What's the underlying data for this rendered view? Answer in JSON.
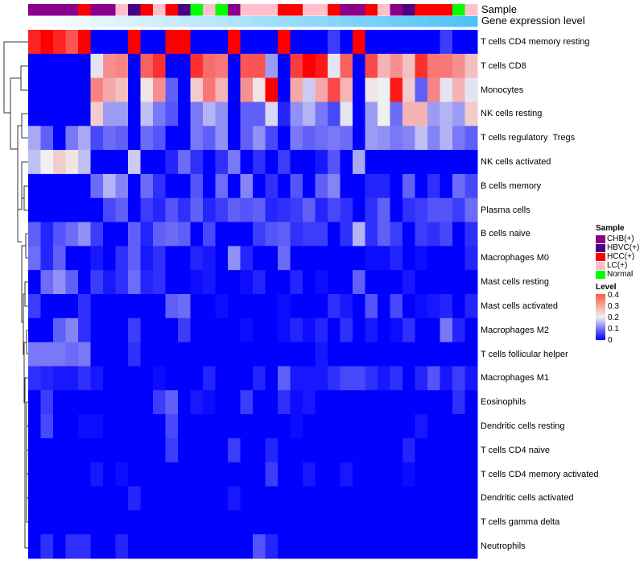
{
  "chart_data": {
    "type": "heatmap",
    "title": "",
    "annotation_labels": {
      "sample": "Sample",
      "gene_level": "Gene expression level"
    },
    "sample_groups": [
      "CHB(+)",
      "CHB(+)",
      "CHB(+)",
      "CHB(+)",
      "HCC(+)",
      "CHB(+)",
      "CHB(+)",
      "LC(+)",
      "HBVC(+)",
      "HCC(+)",
      "LC(+)",
      "HCC(+)",
      "HBVC(+)",
      "Normal",
      "LC(+)",
      "Normal",
      "CHB(+)",
      "LC(+)",
      "LC(+)",
      "LC(+)",
      "HCC(+)",
      "HCC(+)",
      "LC(+)",
      "LC(+)",
      "HCC(+)",
      "CHB(+)",
      "CHB(+)",
      "HCC(+)",
      "LC(+)",
      "CHB(+)",
      "HBVC(+)",
      "HCC(+)",
      "HCC(+)",
      "HCC(+)",
      "Normal",
      "LC(+)"
    ],
    "rows": [
      "T cells CD4 memory resting",
      "T cells CD8",
      "Monocytes",
      "NK cells resting",
      "T cells regulatory  Tregs",
      "NK cells activated",
      "B cells memory",
      "Plasma cells",
      "B cells naive",
      "Macrophages M0",
      "Mast cells resting",
      "Mast cells activated",
      "Macrophages M2",
      "T cells follicular helper",
      "Macrophages M1",
      "Eosinophils",
      "Dendritic cells resting",
      "T cells CD4 naive",
      "T cells CD4 memory activated",
      "Dendritic cells activated",
      "T cells gamma delta",
      "Neutrophils"
    ],
    "values": [
      [
        0.37,
        0.45,
        0.37,
        0.33,
        0.45,
        0,
        0,
        0,
        0.45,
        0,
        0,
        0.45,
        0.45,
        0,
        0,
        0,
        0.45,
        0,
        0,
        0,
        0.45,
        0,
        0,
        0,
        0.05,
        0,
        0.45,
        0,
        0,
        0,
        0,
        0,
        0,
        0.05,
        0,
        0
      ],
      [
        0,
        0,
        0,
        0,
        0,
        0.19,
        0.28,
        0.29,
        0,
        0.32,
        0.36,
        0,
        0,
        0.36,
        0.31,
        0.3,
        0,
        0.33,
        0.33,
        0.13,
        0,
        0.35,
        0.4,
        0.38,
        0.19,
        0.32,
        0,
        0.34,
        0.25,
        0.28,
        0.24,
        0.36,
        0.3,
        0.3,
        0.28,
        0.24
      ],
      [
        0,
        0,
        0,
        0,
        0,
        0.29,
        0.26,
        0.24,
        0,
        0.21,
        0.28,
        0.08,
        0,
        0.23,
        0.3,
        0.25,
        0,
        0.28,
        0.21,
        0.45,
        0,
        0.26,
        0.17,
        0.26,
        0.34,
        0.25,
        0,
        0.21,
        0.2,
        0.38,
        0.23,
        0.08,
        0.29,
        0.19,
        0.25,
        0.19
      ],
      [
        0,
        0,
        0,
        0,
        0,
        0.23,
        0.13,
        0.13,
        0,
        0.16,
        0.1,
        0.07,
        0,
        0.1,
        0.15,
        0.12,
        0,
        0.08,
        0.08,
        0.18,
        0.03,
        0.12,
        0.15,
        0.1,
        0.06,
        0.19,
        0,
        0.13,
        0.2,
        0.09,
        0.25,
        0.25,
        0.13,
        0.15,
        0.13,
        0.23
      ],
      [
        0.14,
        0.08,
        0,
        0.1,
        0.14,
        0.06,
        0.09,
        0.08,
        0,
        0.09,
        0.07,
        0,
        0,
        0.1,
        0.08,
        0.12,
        0,
        0.08,
        0.12,
        0.06,
        0,
        0.1,
        0.08,
        0.09,
        0.1,
        0.09,
        0,
        0.13,
        0.12,
        0.1,
        0.11,
        0.16,
        0.11,
        0.15,
        0.1,
        0.08
      ],
      [
        0.16,
        0.2,
        0.23,
        0.21,
        0.16,
        0,
        0,
        0,
        0.17,
        0,
        0,
        0.03,
        0.09,
        0.04,
        0,
        0.04,
        0.1,
        0,
        0.04,
        0,
        0.05,
        0,
        0,
        0.02,
        0.07,
        0,
        0.14,
        0,
        0,
        0,
        0,
        0,
        0,
        0,
        0,
        0
      ],
      [
        0,
        0,
        0,
        0,
        0,
        0.09,
        0.15,
        0.11,
        0,
        0.09,
        0.04,
        0,
        0,
        0.07,
        0,
        0.09,
        0,
        0.11,
        0,
        0.04,
        0,
        0.07,
        0,
        0.08,
        0.11,
        0,
        0,
        0.03,
        0.03,
        0,
        0.08,
        0,
        0.04,
        0,
        0.09,
        0.06
      ],
      [
        0,
        0,
        0,
        0,
        0,
        0,
        0.06,
        0.08,
        0,
        0.05,
        0.03,
        0.07,
        0.04,
        0.08,
        0.03,
        0.05,
        0.08,
        0.07,
        0.08,
        0.03,
        0.04,
        0.05,
        0.08,
        0.03,
        0.06,
        0.04,
        0,
        0.04,
        0.08,
        0,
        0.04,
        0.05,
        0.07,
        0.07,
        0.05,
        0.09
      ],
      [
        0.08,
        0.03,
        0.07,
        0.09,
        0.12,
        0.05,
        0,
        0,
        0.08,
        0.03,
        0.08,
        0.09,
        0.08,
        0,
        0.06,
        0,
        0,
        0,
        0.05,
        0.07,
        0.08,
        0.04,
        0.05,
        0.05,
        0,
        0.04,
        0.15,
        0.04,
        0.08,
        0.05,
        0,
        0.05,
        0.04,
        0.06,
        0,
        0.04
      ],
      [
        0.09,
        0.03,
        0.08,
        0,
        0,
        0.02,
        0,
        0.04,
        0.08,
        0.02,
        0.04,
        0,
        0,
        0.03,
        0.02,
        0,
        0.12,
        0.03,
        0,
        0,
        0.09,
        0,
        0,
        0,
        0,
        0,
        0,
        0.01,
        0.01,
        0.03,
        0,
        0.01,
        0,
        0,
        0,
        0.03
      ],
      [
        0,
        0.09,
        0.12,
        0.08,
        0,
        0.05,
        0.02,
        0.04,
        0.09,
        0.03,
        0.04,
        0,
        0,
        0.01,
        0.02,
        0,
        0,
        0.01,
        0.03,
        0,
        0,
        0.03,
        0,
        0.01,
        0,
        0,
        0.08,
        0,
        0,
        0,
        0.02,
        0,
        0,
        0,
        0,
        0
      ],
      [
        0.05,
        0,
        0,
        0,
        0.04,
        0,
        0,
        0,
        0,
        0,
        0,
        0.08,
        0.09,
        0,
        0,
        0.01,
        0,
        0,
        0,
        0,
        0.01,
        0,
        0,
        0,
        0.04,
        0.02,
        0,
        0.07,
        0,
        0.06,
        0,
        0.01,
        0.02,
        0.03,
        0,
        0.03
      ],
      [
        0,
        0,
        0.08,
        0.11,
        0.04,
        0,
        0,
        0,
        0.05,
        0,
        0,
        0,
        0.05,
        0,
        0,
        0,
        0,
        0.01,
        0,
        0,
        0.01,
        0.03,
        0.01,
        0.03,
        0,
        0.04,
        0,
        0.02,
        0,
        0.01,
        0.04,
        0,
        0,
        0.1,
        0.03,
        0
      ],
      [
        0.1,
        0.1,
        0.1,
        0.09,
        0.1,
        0,
        0,
        0,
        0.04,
        0,
        0,
        0,
        0,
        0,
        0,
        0,
        0,
        0,
        0,
        0,
        0,
        0,
        0,
        0.02,
        0,
        0,
        0,
        0,
        0,
        0,
        0,
        0,
        0,
        0,
        0,
        0
      ],
      [
        0.04,
        0.03,
        0.02,
        0.02,
        0.04,
        0.02,
        0,
        0,
        0,
        0,
        0.01,
        0,
        0,
        0,
        0.03,
        0,
        0,
        0,
        0.03,
        0,
        0.08,
        0.02,
        0.02,
        0.02,
        0.04,
        0.06,
        0.06,
        0.04,
        0.02,
        0.04,
        0,
        0.03,
        0.07,
        0.02,
        0.05,
        0.02
      ],
      [
        0,
        0.05,
        0,
        0,
        0,
        0,
        0,
        0,
        0,
        0,
        0.05,
        0.08,
        0,
        0.02,
        0.01,
        0,
        0,
        0.05,
        0,
        0,
        0.04,
        0.01,
        0.02,
        0,
        0,
        0,
        0,
        0,
        0,
        0,
        0,
        0,
        0,
        0,
        0.04,
        0
      ],
      [
        0,
        0.06,
        0,
        0,
        0.01,
        0.01,
        0,
        0,
        0,
        0,
        0,
        0.06,
        0,
        0,
        0,
        0,
        0,
        0,
        0,
        0,
        0,
        0.01,
        0,
        0,
        0,
        0,
        0,
        0,
        0,
        0,
        0,
        0.02,
        0,
        0,
        0,
        0
      ],
      [
        0,
        0,
        0,
        0,
        0,
        0,
        0,
        0,
        0,
        0,
        0,
        0.05,
        0,
        0,
        0,
        0,
        0.05,
        0,
        0,
        0.03,
        0,
        0,
        0,
        0,
        0,
        0,
        0,
        0,
        0,
        0,
        0.03,
        0,
        0,
        0,
        0,
        0
      ],
      [
        0,
        0,
        0,
        0,
        0,
        0.02,
        0,
        0.01,
        0,
        0,
        0,
        0,
        0,
        0,
        0,
        0,
        0,
        0,
        0,
        0.05,
        0,
        0,
        0.02,
        0,
        0,
        0.02,
        0,
        0,
        0,
        0,
        0.01,
        0,
        0,
        0,
        0,
        0
      ],
      [
        0,
        0,
        0,
        0,
        0,
        0,
        0,
        0,
        0.03,
        0,
        0,
        0,
        0,
        0,
        0,
        0,
        0.02,
        0,
        0,
        0,
        0,
        0,
        0,
        0,
        0,
        0,
        0,
        0,
        0,
        0,
        0,
        0,
        0,
        0,
        0,
        0
      ],
      [
        0,
        0,
        0,
        0,
        0,
        0,
        0,
        0,
        0,
        0,
        0,
        0,
        0,
        0,
        0,
        0,
        0,
        0,
        0,
        0,
        0,
        0,
        0,
        0,
        0,
        0,
        0,
        0,
        0,
        0,
        0,
        0,
        0,
        0,
        0,
        0
      ],
      [
        0,
        0.04,
        0,
        0.04,
        0.04,
        0,
        0,
        0.03,
        0,
        0,
        0,
        0,
        0,
        0,
        0,
        0,
        0,
        0,
        0.07,
        0.03,
        0,
        0,
        0,
        0,
        0,
        0,
        0,
        0,
        0,
        0,
        0,
        0,
        0,
        0,
        0,
        0
      ]
    ],
    "color_scale": {
      "min": 0,
      "mid": 0.2,
      "max": 0.4,
      "low": "#0000ff",
      "midcolor": "#f0f0f0",
      "high": "#ff0000"
    },
    "legend": {
      "sample_title": "Sample",
      "sample_items": [
        {
          "label": "CHB(+)",
          "color": "#8b008b"
        },
        {
          "label": "HBVC(+)",
          "color": "#4b0082"
        },
        {
          "label": "HCC(+)",
          "color": "#ff0000"
        },
        {
          "label": "LC(+)",
          "color": "#ffc0cb"
        },
        {
          "label": "Normal",
          "color": "#00ff00"
        }
      ],
      "level_title": "Level",
      "level_ticks": [
        "0.4",
        "0.3",
        "0.2",
        "0.1",
        "0"
      ],
      "placement": "right"
    },
    "gene_level_colors": [
      "#ffffff",
      "#4fc3f7"
    ]
  }
}
